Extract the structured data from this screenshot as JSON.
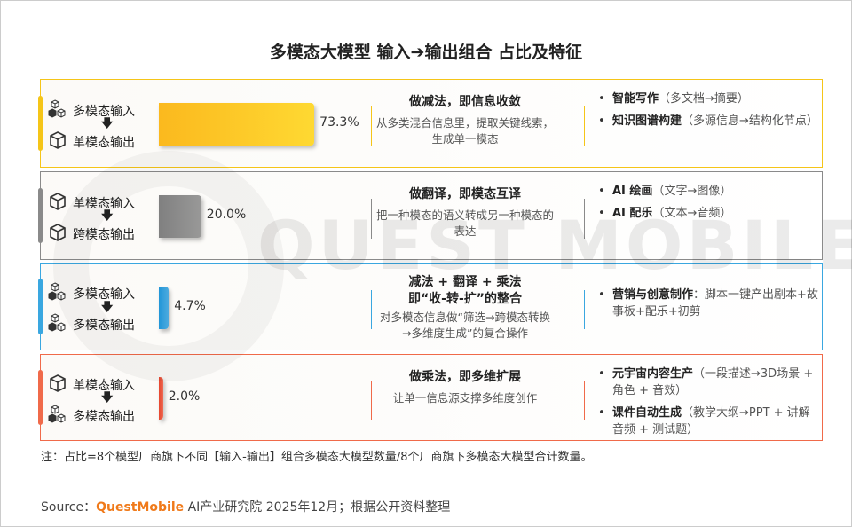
{
  "title": "多模态大模型 输入➔输出组合 占比及特征",
  "watermark": "QUEST MOBILE",
  "rows": [
    {
      "input": "多模态输入",
      "input_icon": "multi-cube-icon",
      "output": "单模态输出",
      "output_icon": "single-cube-icon",
      "share": "73.3%",
      "share_value": 73.3,
      "color": "#f5c518",
      "bar_color": "#fbb91e",
      "heading": "做减法，即信息收敛",
      "heading2": "",
      "summary": "从多类混合信息里，提取关键线索，生成单一模态",
      "apps": [
        {
          "name": "智能写作",
          "detail": "（多文档→摘要）"
        },
        {
          "name": "知识图谱构建",
          "detail": "（多源信息→结构化节点）"
        }
      ]
    },
    {
      "input": "单模态输入",
      "input_icon": "single-cube-icon",
      "output": "跨模态输出",
      "output_icon": "single-cube-icon",
      "share": "20.0%",
      "share_value": 20.0,
      "color": "#8a8a8a",
      "bar_color": "#808080",
      "heading": "做翻译，即模态互译",
      "heading2": "",
      "summary": "把一种模态的语义转成另一种模态的表达",
      "apps": [
        {
          "name": "AI 绘画",
          "detail": "（文字→图像）"
        },
        {
          "name": "AI 配乐",
          "detail": "（文本→音频）"
        }
      ]
    },
    {
      "input": "多模态输入",
      "input_icon": "multi-cube-icon",
      "output": "多模态输出",
      "output_icon": "multi-cube-icon",
      "share": "4.7%",
      "share_value": 4.7,
      "color": "#3aa7e0",
      "bar_color": "#2196d8",
      "heading": "减法 + 翻译 + 乘法",
      "heading2": "即“收-转-扩”的整合",
      "summary": "对多模态信息做“筛选→跨模态转换→多维度生成”的复合操作",
      "apps": [
        {
          "name": "营销与创意制作",
          "detail": "：脚本一键产出剧本+故事板+配乐+初剪"
        }
      ]
    },
    {
      "input": "单模态输入",
      "input_icon": "single-cube-icon",
      "output": "多模态输出",
      "output_icon": "multi-cube-icon",
      "share": "2.0%",
      "share_value": 2.0,
      "color": "#f06a4a",
      "bar_color": "#e8472e",
      "heading": "做乘法，即多维扩展",
      "heading2": "",
      "summary": "让单一信息源支撑多维度创作",
      "apps": [
        {
          "name": "元宇宙内容生产",
          "detail": "（一段描述→3D场景 + 角色 + 音效）"
        },
        {
          "name": "课件自动生成",
          "detail": "（教学大纲→PPT + 讲解音频 + 测试题）"
        }
      ]
    }
  ],
  "arrow": "🡇",
  "note": "注：占比=8个模型厂商旗下不同【输入-输出】组合多模态大模型数量/8个厂商旗下多模态大模型合计数量。",
  "source": {
    "prefix": "Source：",
    "brand": "QuestMobile",
    "suffix": " AI产业研究院 2025年12月；根据公开资料整理"
  }
}
